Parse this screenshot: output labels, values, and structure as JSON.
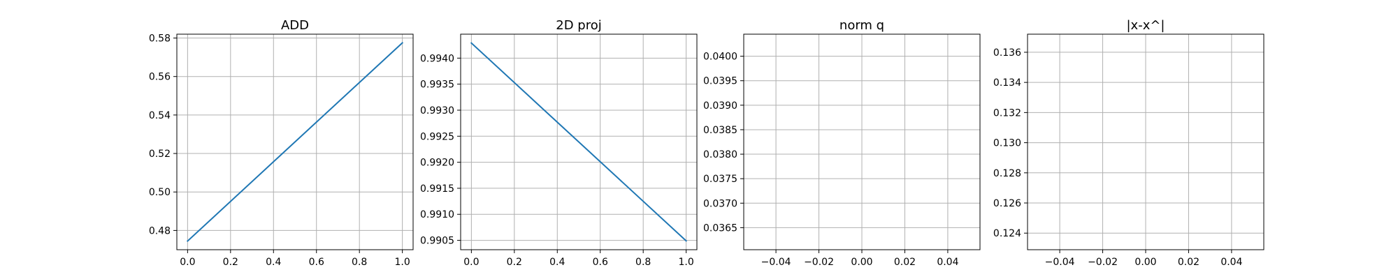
{
  "figure": {
    "background": "#ffffff",
    "line_color": "#1f77b4",
    "grid_color": "#b0b0b0"
  },
  "chart_data": [
    {
      "type": "line",
      "title": "ADD",
      "xlabel": "",
      "ylabel": "",
      "grid": true,
      "xlim": [
        -0.05,
        1.05
      ],
      "ylim": [
        0.47,
        0.582
      ],
      "xticks": [
        0.0,
        0.2,
        0.4,
        0.6,
        0.8,
        1.0
      ],
      "xtick_labels": [
        "0.0",
        "0.2",
        "0.4",
        "0.6",
        "0.8",
        "1.0"
      ],
      "yticks": [
        0.48,
        0.5,
        0.52,
        0.54,
        0.56,
        0.58
      ],
      "ytick_labels": [
        "0.48",
        "0.50",
        "0.52",
        "0.54",
        "0.56",
        "0.58"
      ],
      "series": [
        {
          "x": [
            0.0,
            1.0
          ],
          "y": [
            0.4745,
            0.5775
          ],
          "color": "#1f77b4"
        }
      ]
    },
    {
      "type": "line",
      "title": "2D proj",
      "xlabel": "",
      "ylabel": "",
      "grid": true,
      "xlim": [
        -0.05,
        1.05
      ],
      "ylim": [
        0.99032,
        0.99446
      ],
      "xticks": [
        0.0,
        0.2,
        0.4,
        0.6,
        0.8,
        1.0
      ],
      "xtick_labels": [
        "0.0",
        "0.2",
        "0.4",
        "0.6",
        "0.8",
        "1.0"
      ],
      "yticks": [
        0.9905,
        0.991,
        0.9915,
        0.992,
        0.9925,
        0.993,
        0.9935,
        0.994
      ],
      "ytick_labels": [
        "0.9905",
        "0.9910",
        "0.9915",
        "0.9920",
        "0.9925",
        "0.9930",
        "0.9935",
        "0.9940"
      ],
      "series": [
        {
          "x": [
            0.0,
            1.0
          ],
          "y": [
            0.99429,
            0.99049
          ],
          "color": "#1f77b4"
        }
      ]
    },
    {
      "type": "line",
      "title": "norm q",
      "xlabel": "",
      "ylabel": "",
      "grid": true,
      "xlim": [
        -0.055,
        0.055
      ],
      "ylim": [
        0.03605,
        0.04045
      ],
      "xticks": [
        -0.04,
        -0.02,
        0.0,
        0.02,
        0.04
      ],
      "xtick_labels": [
        "−0.04",
        "−0.02",
        "0.00",
        "0.02",
        "0.04"
      ],
      "yticks": [
        0.0365,
        0.037,
        0.0375,
        0.038,
        0.0385,
        0.039,
        0.0395,
        0.04
      ],
      "ytick_labels": [
        "0.0365",
        "0.0370",
        "0.0375",
        "0.0380",
        "0.0385",
        "0.0390",
        "0.0395",
        "0.0400"
      ],
      "series": []
    },
    {
      "type": "line",
      "title": "|x-x^|",
      "xlabel": "",
      "ylabel": "",
      "grid": true,
      "xlim": [
        -0.055,
        0.055
      ],
      "ylim": [
        0.1229,
        0.1372
      ],
      "xticks": [
        -0.04,
        -0.02,
        0.0,
        0.02,
        0.04
      ],
      "xtick_labels": [
        "−0.04",
        "−0.02",
        "0.00",
        "0.02",
        "0.04"
      ],
      "yticks": [
        0.124,
        0.126,
        0.128,
        0.13,
        0.132,
        0.134,
        0.136
      ],
      "ytick_labels": [
        "0.124",
        "0.126",
        "0.128",
        "0.130",
        "0.132",
        "0.134",
        "0.136"
      ],
      "series": []
    }
  ]
}
